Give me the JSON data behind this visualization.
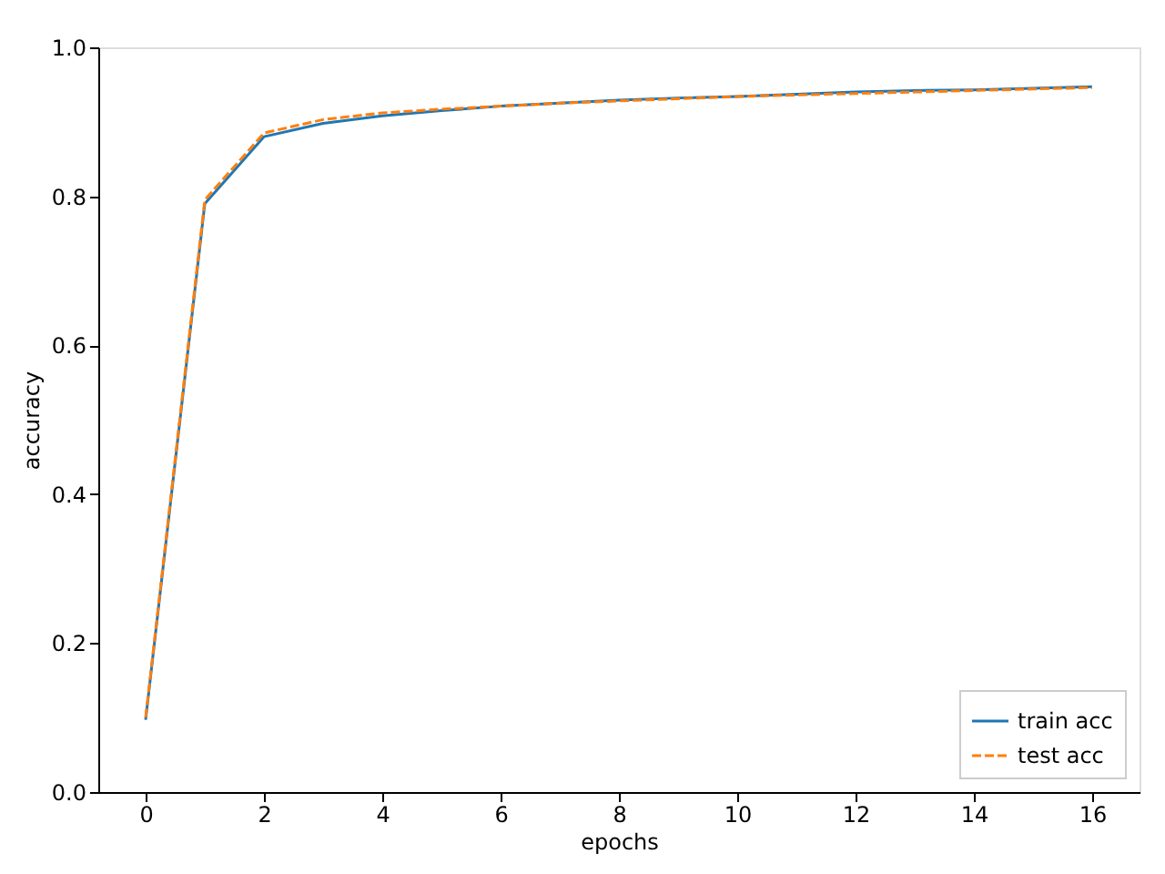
{
  "chart_data": {
    "type": "line",
    "xlabel": "epochs",
    "ylabel": "accuracy",
    "x": [
      0,
      1,
      2,
      3,
      4,
      5,
      6,
      7,
      8,
      9,
      10,
      11,
      12,
      13,
      14,
      15,
      16
    ],
    "series": [
      {
        "name": "train acc",
        "color": "#1f77b4",
        "line_style": "solid",
        "values": [
          0.097,
          0.79,
          0.88,
          0.898,
          0.908,
          0.915,
          0.921,
          0.925,
          0.929,
          0.932,
          0.934,
          0.937,
          0.94,
          0.942,
          0.943,
          0.945,
          0.947
        ]
      },
      {
        "name": "test acc",
        "color": "#ff7f0e",
        "line_style": "dashed",
        "values": [
          0.1,
          0.795,
          0.885,
          0.903,
          0.912,
          0.917,
          0.921,
          0.925,
          0.928,
          0.931,
          0.934,
          0.936,
          0.938,
          0.94,
          0.942,
          0.944,
          0.946
        ]
      }
    ],
    "xlim": [
      -0.8,
      16.8
    ],
    "xticks": [
      0,
      2,
      4,
      6,
      8,
      10,
      12,
      14,
      16
    ],
    "ylim": [
      0,
      1
    ],
    "yticks": [
      {
        "value": 0,
        "label": "0.0"
      },
      {
        "value": 0.2,
        "label": "0.2"
      },
      {
        "value": 0.4,
        "label": "0.4"
      },
      {
        "value": 0.6,
        "label": "0.6"
      },
      {
        "value": 0.8,
        "label": "0.8"
      },
      {
        "value": 1,
        "label": "1.0"
      }
    ],
    "grid": false,
    "legend": "bottom right",
    "marker": "none"
  }
}
